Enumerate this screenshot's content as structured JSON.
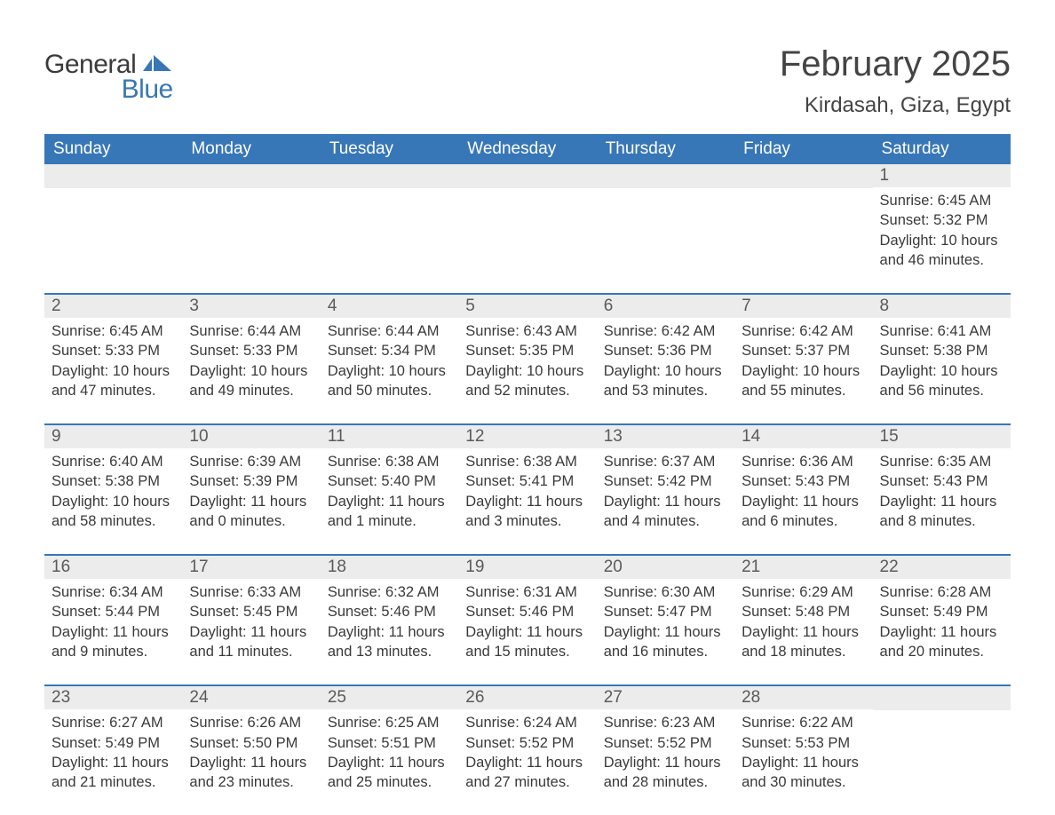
{
  "logo": {
    "word1": "General",
    "word2": "Blue"
  },
  "title": "February 2025",
  "location": "Kirdasah, Giza, Egypt",
  "colors": {
    "brand_blue": "#3877b7",
    "row_border": "#3877b7",
    "day_header_bg": "#ececec",
    "text": "#3a3a3a",
    "background": "#ffffff"
  },
  "weekdays": [
    "Sunday",
    "Monday",
    "Tuesday",
    "Wednesday",
    "Thursday",
    "Friday",
    "Saturday"
  ],
  "weeks": [
    [
      {
        "n": "",
        "sunrise": "",
        "sunset": "",
        "daylight": ""
      },
      {
        "n": "",
        "sunrise": "",
        "sunset": "",
        "daylight": ""
      },
      {
        "n": "",
        "sunrise": "",
        "sunset": "",
        "daylight": ""
      },
      {
        "n": "",
        "sunrise": "",
        "sunset": "",
        "daylight": ""
      },
      {
        "n": "",
        "sunrise": "",
        "sunset": "",
        "daylight": ""
      },
      {
        "n": "",
        "sunrise": "",
        "sunset": "",
        "daylight": ""
      },
      {
        "n": "1",
        "sunrise": "Sunrise: 6:45 AM",
        "sunset": "Sunset: 5:32 PM",
        "daylight": "Daylight: 10 hours and 46 minutes."
      }
    ],
    [
      {
        "n": "2",
        "sunrise": "Sunrise: 6:45 AM",
        "sunset": "Sunset: 5:33 PM",
        "daylight": "Daylight: 10 hours and 47 minutes."
      },
      {
        "n": "3",
        "sunrise": "Sunrise: 6:44 AM",
        "sunset": "Sunset: 5:33 PM",
        "daylight": "Daylight: 10 hours and 49 minutes."
      },
      {
        "n": "4",
        "sunrise": "Sunrise: 6:44 AM",
        "sunset": "Sunset: 5:34 PM",
        "daylight": "Daylight: 10 hours and 50 minutes."
      },
      {
        "n": "5",
        "sunrise": "Sunrise: 6:43 AM",
        "sunset": "Sunset: 5:35 PM",
        "daylight": "Daylight: 10 hours and 52 minutes."
      },
      {
        "n": "6",
        "sunrise": "Sunrise: 6:42 AM",
        "sunset": "Sunset: 5:36 PM",
        "daylight": "Daylight: 10 hours and 53 minutes."
      },
      {
        "n": "7",
        "sunrise": "Sunrise: 6:42 AM",
        "sunset": "Sunset: 5:37 PM",
        "daylight": "Daylight: 10 hours and 55 minutes."
      },
      {
        "n": "8",
        "sunrise": "Sunrise: 6:41 AM",
        "sunset": "Sunset: 5:38 PM",
        "daylight": "Daylight: 10 hours and 56 minutes."
      }
    ],
    [
      {
        "n": "9",
        "sunrise": "Sunrise: 6:40 AM",
        "sunset": "Sunset: 5:38 PM",
        "daylight": "Daylight: 10 hours and 58 minutes."
      },
      {
        "n": "10",
        "sunrise": "Sunrise: 6:39 AM",
        "sunset": "Sunset: 5:39 PM",
        "daylight": "Daylight: 11 hours and 0 minutes."
      },
      {
        "n": "11",
        "sunrise": "Sunrise: 6:38 AM",
        "sunset": "Sunset: 5:40 PM",
        "daylight": "Daylight: 11 hours and 1 minute."
      },
      {
        "n": "12",
        "sunrise": "Sunrise: 6:38 AM",
        "sunset": "Sunset: 5:41 PM",
        "daylight": "Daylight: 11 hours and 3 minutes."
      },
      {
        "n": "13",
        "sunrise": "Sunrise: 6:37 AM",
        "sunset": "Sunset: 5:42 PM",
        "daylight": "Daylight: 11 hours and 4 minutes."
      },
      {
        "n": "14",
        "sunrise": "Sunrise: 6:36 AM",
        "sunset": "Sunset: 5:43 PM",
        "daylight": "Daylight: 11 hours and 6 minutes."
      },
      {
        "n": "15",
        "sunrise": "Sunrise: 6:35 AM",
        "sunset": "Sunset: 5:43 PM",
        "daylight": "Daylight: 11 hours and 8 minutes."
      }
    ],
    [
      {
        "n": "16",
        "sunrise": "Sunrise: 6:34 AM",
        "sunset": "Sunset: 5:44 PM",
        "daylight": "Daylight: 11 hours and 9 minutes."
      },
      {
        "n": "17",
        "sunrise": "Sunrise: 6:33 AM",
        "sunset": "Sunset: 5:45 PM",
        "daylight": "Daylight: 11 hours and 11 minutes."
      },
      {
        "n": "18",
        "sunrise": "Sunrise: 6:32 AM",
        "sunset": "Sunset: 5:46 PM",
        "daylight": "Daylight: 11 hours and 13 minutes."
      },
      {
        "n": "19",
        "sunrise": "Sunrise: 6:31 AM",
        "sunset": "Sunset: 5:46 PM",
        "daylight": "Daylight: 11 hours and 15 minutes."
      },
      {
        "n": "20",
        "sunrise": "Sunrise: 6:30 AM",
        "sunset": "Sunset: 5:47 PM",
        "daylight": "Daylight: 11 hours and 16 minutes."
      },
      {
        "n": "21",
        "sunrise": "Sunrise: 6:29 AM",
        "sunset": "Sunset: 5:48 PM",
        "daylight": "Daylight: 11 hours and 18 minutes."
      },
      {
        "n": "22",
        "sunrise": "Sunrise: 6:28 AM",
        "sunset": "Sunset: 5:49 PM",
        "daylight": "Daylight: 11 hours and 20 minutes."
      }
    ],
    [
      {
        "n": "23",
        "sunrise": "Sunrise: 6:27 AM",
        "sunset": "Sunset: 5:49 PM",
        "daylight": "Daylight: 11 hours and 21 minutes."
      },
      {
        "n": "24",
        "sunrise": "Sunrise: 6:26 AM",
        "sunset": "Sunset: 5:50 PM",
        "daylight": "Daylight: 11 hours and 23 minutes."
      },
      {
        "n": "25",
        "sunrise": "Sunrise: 6:25 AM",
        "sunset": "Sunset: 5:51 PM",
        "daylight": "Daylight: 11 hours and 25 minutes."
      },
      {
        "n": "26",
        "sunrise": "Sunrise: 6:24 AM",
        "sunset": "Sunset: 5:52 PM",
        "daylight": "Daylight: 11 hours and 27 minutes."
      },
      {
        "n": "27",
        "sunrise": "Sunrise: 6:23 AM",
        "sunset": "Sunset: 5:52 PM",
        "daylight": "Daylight: 11 hours and 28 minutes."
      },
      {
        "n": "28",
        "sunrise": "Sunrise: 6:22 AM",
        "sunset": "Sunset: 5:53 PM",
        "daylight": "Daylight: 11 hours and 30 minutes."
      },
      {
        "n": "",
        "sunrise": "",
        "sunset": "",
        "daylight": ""
      }
    ]
  ]
}
